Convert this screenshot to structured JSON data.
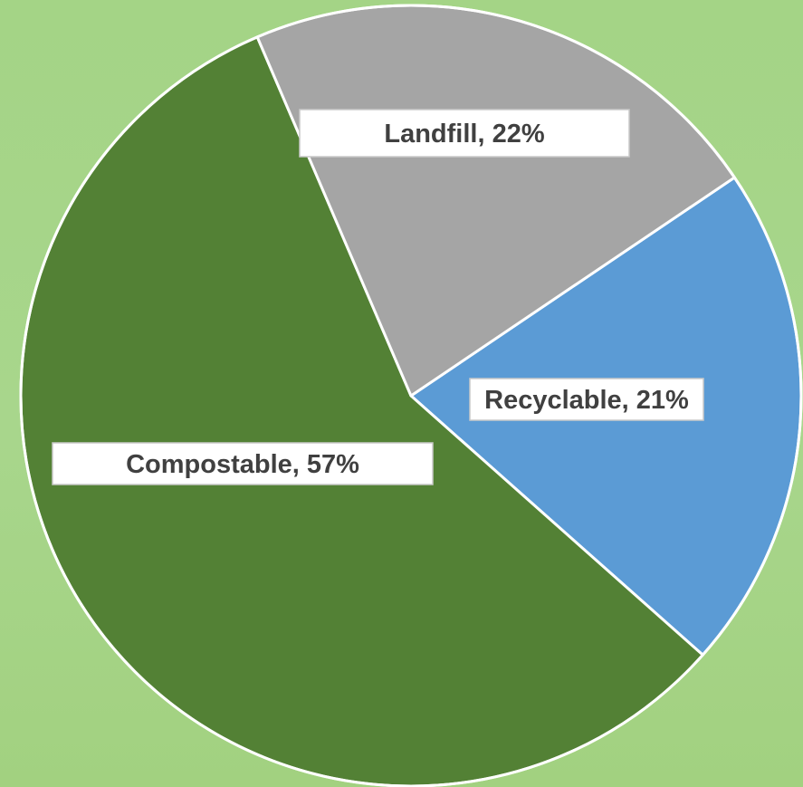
{
  "chart_data": {
    "type": "pie",
    "title": "",
    "slices": [
      {
        "category": "Recyclable",
        "percent": 21,
        "label": "Recyclable, 21%",
        "color": "#5b9bd5"
      },
      {
        "category": "Compostable",
        "percent": 57,
        "label": "Compostable, 57%",
        "color": "#538135"
      },
      {
        "category": "Landfill",
        "percent": 22,
        "label": "Landfill, 22%",
        "color": "#a5a5a5"
      }
    ],
    "legend": "none",
    "start_angle_deg": 56
  }
}
